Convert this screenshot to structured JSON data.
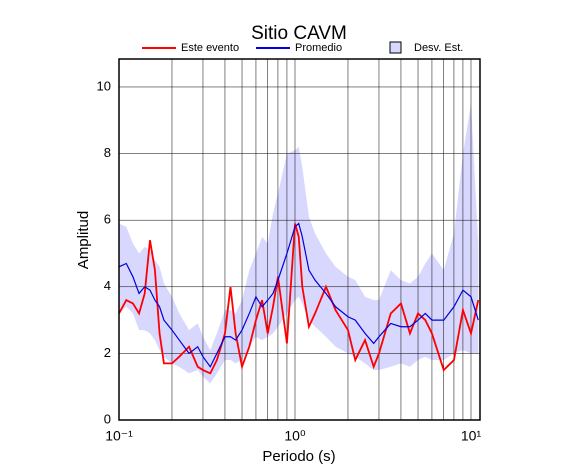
{
  "chart_data": {
    "type": "line",
    "title": "Sitio CAVM",
    "x_label": "Periodo (s)",
    "y_label": "Amplitud",
    "x_scale": "log",
    "grid": true,
    "xlim": [
      0.1,
      11.25
    ],
    "ylim": [
      0,
      10.84
    ],
    "xticks": [
      {
        "value": 0.1,
        "label": "10⁻¹"
      },
      {
        "value": 1,
        "label": "10⁰"
      },
      {
        "value": 10,
        "label": "10¹"
      }
    ],
    "xminor_ticks": [
      0.2,
      0.3,
      0.4,
      0.5,
      0.6,
      0.7,
      0.8,
      0.9,
      2,
      3,
      4,
      5,
      6,
      7,
      8,
      9
    ],
    "yticks": [
      0,
      2,
      4,
      6,
      8,
      10
    ],
    "x": [
      0.1,
      0.11,
      0.12,
      0.13,
      0.14,
      0.15,
      0.16,
      0.17,
      0.18,
      0.2,
      0.22,
      0.25,
      0.28,
      0.3,
      0.33,
      0.36,
      0.4,
      0.43,
      0.46,
      0.5,
      0.55,
      0.6,
      0.65,
      0.7,
      0.75,
      0.8,
      0.9,
      1.0,
      1.05,
      1.1,
      1.2,
      1.3,
      1.5,
      1.7,
      2.0,
      2.2,
      2.5,
      2.8,
      3.0,
      3.5,
      4,
      4.5,
      5,
      5.5,
      6,
      7,
      8,
      9,
      10,
      11
    ],
    "series": [
      {
        "name": "Este evento",
        "color": "#ff0000",
        "values": [
          3.2,
          3.6,
          3.5,
          3.2,
          3.8,
          5.4,
          4.5,
          2.6,
          1.7,
          1.7,
          1.9,
          2.2,
          1.6,
          1.5,
          1.4,
          1.8,
          2.6,
          4.0,
          2.6,
          1.6,
          2.2,
          3.0,
          3.6,
          2.6,
          3.4,
          4.3,
          2.3,
          5.9,
          5.5,
          4.0,
          2.8,
          3.2,
          4.0,
          3.3,
          2.7,
          1.8,
          2.4,
          1.6,
          2.0,
          3.2,
          3.5,
          2.6,
          3.2,
          3.0,
          2.6,
          1.5,
          1.8,
          3.3,
          2.6,
          3.6
        ]
      },
      {
        "name": "Promedio",
        "color": "#0000dd",
        "values": [
          4.6,
          4.7,
          4.3,
          3.8,
          4.0,
          3.9,
          3.6,
          3.4,
          3.0,
          2.7,
          2.4,
          2.0,
          2.2,
          1.9,
          1.6,
          2.0,
          2.5,
          2.5,
          2.4,
          2.7,
          3.2,
          3.7,
          3.4,
          3.6,
          3.8,
          4.2,
          5.0,
          5.8,
          5.9,
          5.5,
          4.5,
          4.2,
          3.8,
          3.4,
          3.1,
          3.0,
          2.6,
          2.3,
          2.5,
          2.9,
          2.8,
          2.8,
          3.0,
          3.2,
          3.0,
          3.0,
          3.4,
          3.9,
          3.7,
          3.0
        ]
      },
      {
        "name": "Desv. Est.",
        "color": "#d8d8ff",
        "lower": [
          3.2,
          3.4,
          3.2,
          2.7,
          2.7,
          2.6,
          2.4,
          2.1,
          1.9,
          1.7,
          1.6,
          1.4,
          1.5,
          1.3,
          1.1,
          1.4,
          1.8,
          1.8,
          1.7,
          1.8,
          2.2,
          2.5,
          2.4,
          2.5,
          2.6,
          2.8,
          3.2,
          3.6,
          3.7,
          3.5,
          3.0,
          2.8,
          2.5,
          2.2,
          2.0,
          1.9,
          1.7,
          1.5,
          1.5,
          1.6,
          1.7,
          1.6,
          1.8,
          1.9,
          1.8,
          1.8,
          2.0,
          2.1,
          2.0,
          2.0
        ],
        "upper": [
          5.9,
          5.8,
          5.3,
          5.0,
          5.2,
          5.1,
          4.8,
          4.6,
          4.1,
          3.7,
          3.2,
          2.7,
          2.9,
          2.5,
          2.1,
          2.6,
          3.3,
          3.3,
          3.2,
          3.6,
          4.5,
          5.0,
          5.5,
          5.3,
          6.2,
          6.8,
          8.0,
          8.1,
          8.2,
          7.6,
          6.1,
          5.6,
          5.0,
          4.6,
          4.3,
          4.2,
          3.7,
          3.6,
          3.6,
          4.5,
          4.2,
          4.1,
          4.3,
          4.7,
          5.0,
          4.5,
          5.6,
          8.0,
          9.5,
          5.3
        ]
      }
    ]
  }
}
